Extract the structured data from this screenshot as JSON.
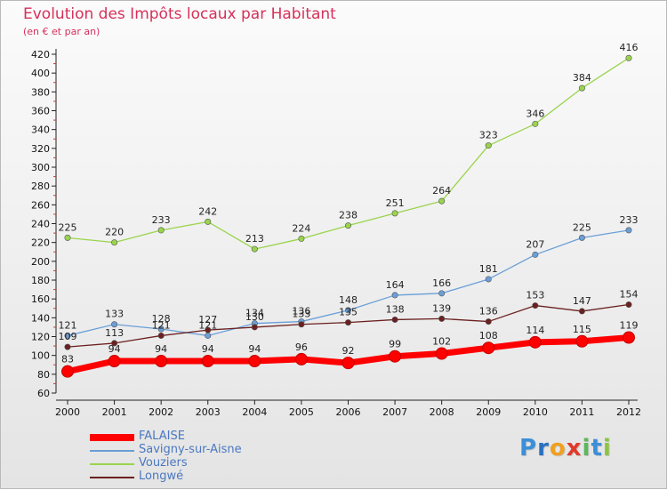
{
  "chart_data": {
    "type": "line",
    "title": "Evolution des Impôts locaux par Habitant",
    "subtitle": "(en € et par an)",
    "x": [
      "2000",
      "2001",
      "2002",
      "2003",
      "2004",
      "2005",
      "2006",
      "2007",
      "2008",
      "2009",
      "2010",
      "2011",
      "2012"
    ],
    "ylim": [
      60,
      420
    ],
    "yticks": [
      60,
      80,
      100,
      120,
      140,
      160,
      180,
      200,
      220,
      240,
      260,
      280,
      300,
      320,
      340,
      360,
      380,
      400,
      420
    ],
    "grid": false,
    "legend_position": "bottom-left",
    "series": [
      {
        "name": "FALAISE",
        "color": "#ff0000",
        "values": [
          83,
          94,
          94,
          94,
          94,
          96,
          92,
          99,
          102,
          108,
          114,
          115,
          119
        ]
      },
      {
        "name": "Savigny-sur-Aisne",
        "color": "#6a9fd8",
        "values": [
          121,
          133,
          128,
          121,
          134,
          136,
          148,
          164,
          166,
          181,
          207,
          225,
          233
        ]
      },
      {
        "name": "Vouziers",
        "color": "#9ad44c",
        "values": [
          225,
          220,
          233,
          242,
          213,
          224,
          238,
          251,
          264,
          323,
          346,
          384,
          416
        ]
      },
      {
        "name": "Longwé",
        "color": "#6b2020",
        "values": [
          109,
          113,
          121,
          127,
          130,
          133,
          135,
          138,
          139,
          136,
          153,
          147,
          154
        ]
      }
    ]
  },
  "branding": {
    "logo_letters": [
      "P",
      "r",
      "o",
      "x",
      "i",
      "t",
      "i"
    ],
    "logo_colors": [
      "#3b8fd8",
      "#2a70c0",
      "#f0a020",
      "#e03a2a",
      "#5cb85c",
      "#3b8fd8",
      "#8cc63f"
    ]
  }
}
